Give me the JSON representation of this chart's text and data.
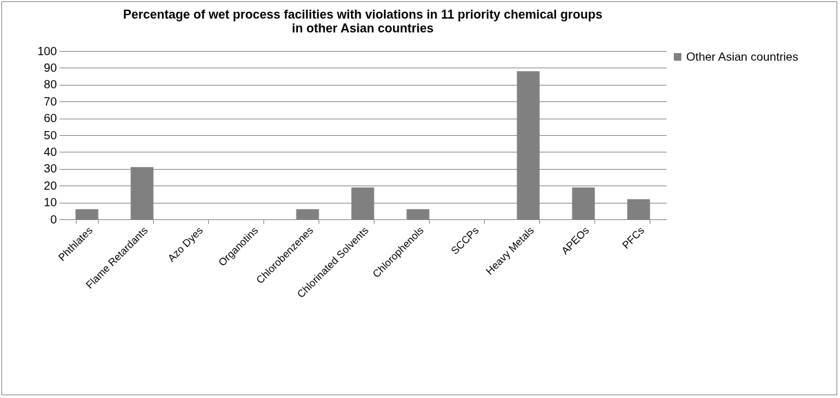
{
  "chart_data": {
    "type": "bar",
    "title": "Percentage of wet process facilities with violations in 11 priority chemical groups\nin other Asian countries",
    "categories": [
      "Phthlates",
      "Flame Retardants",
      "Azo Dyes",
      "Organotins",
      "Chlorobenzenes",
      "Chlorinated Solvents",
      "Chlorophenols",
      "SCCPs",
      "Heavy Metals",
      "APEOs",
      "PFCs"
    ],
    "series": [
      {
        "name": "Other Asian countries",
        "color": "#808080",
        "values": [
          6,
          31,
          0,
          0,
          6,
          19,
          6,
          0,
          88,
          19,
          12
        ]
      }
    ],
    "ylim": [
      0,
      100
    ],
    "yticks": [
      0,
      10,
      20,
      30,
      40,
      50,
      60,
      70,
      80,
      90,
      100
    ],
    "grid": "y",
    "legend": "right"
  }
}
